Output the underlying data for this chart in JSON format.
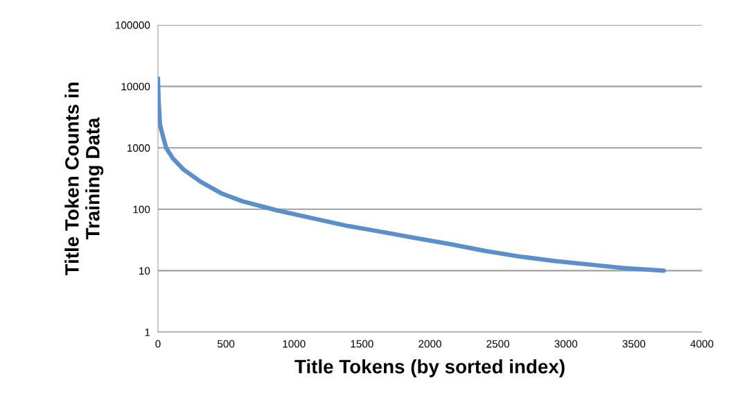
{
  "chart_data": {
    "type": "line",
    "xlabel": "Title Tokens (by sorted index)",
    "ylabel": "Title Token Counts in\nTraining Data",
    "log": "y",
    "grid": "y",
    "xlim": [
      0,
      4000
    ],
    "xticks": [
      0,
      500,
      1000,
      1500,
      2000,
      2500,
      3000,
      3500,
      4000
    ],
    "ylim": [
      1,
      100000
    ],
    "yticks": [
      1,
      10,
      100,
      1000,
      10000,
      100000
    ],
    "marker": "none",
    "line_style": "solid",
    "series": [
      {
        "color": "#5b8fc9",
        "x": [
          0,
          5,
          15,
          35,
          60,
          110,
          190,
          315,
          470,
          620,
          875,
          1130,
          1385,
          1640,
          1895,
          2150,
          2405,
          2660,
          2915,
          3170,
          3425,
          3720
        ],
        "values": [
          13500,
          5800,
          2350,
          1600,
          1000,
          670,
          440,
          280,
          180,
          135,
          96,
          72,
          54,
          43,
          34,
          27,
          21,
          17,
          14.4,
          12.6,
          11,
          10
        ]
      }
    ]
  }
}
